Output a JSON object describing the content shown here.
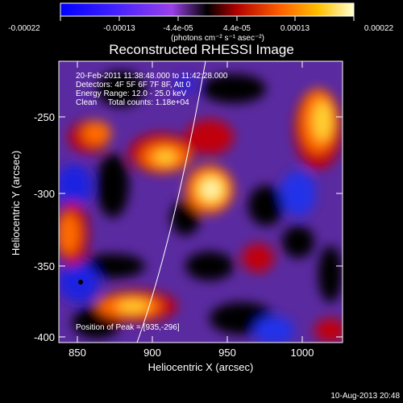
{
  "colorbar": {
    "ticks": [
      "-0.00022",
      "-0.00013",
      "-4.4e-05",
      "4.4e-05",
      "0.00013",
      "0.00022"
    ],
    "unit_label": "(photons cm⁻² s⁻¹ asec⁻²)"
  },
  "title": "Reconstructed RHESSI Image",
  "info": {
    "line1": "20-Feb-2011 11:38:48.000 to 11:42:28.000",
    "line2": "Detectors: 4F 5F 6F 7F 8F, Att 0",
    "line3": "Energy Range: 12.0 - 25.0 keV",
    "line4": "Clean     Total counts: 1.18e+04"
  },
  "peak_text": "Position of Peak = [935,-296]",
  "axes": {
    "xlabel": "Heliocentric X (arcsec)",
    "ylabel": "Heliocentric Y (arcsec)",
    "xticks": [
      "850",
      "900",
      "950",
      "1000"
    ],
    "yticks": [
      "-250",
      "-300",
      "-350",
      "-400"
    ]
  },
  "timestamp": "10-Aug-2013 20:48"
}
